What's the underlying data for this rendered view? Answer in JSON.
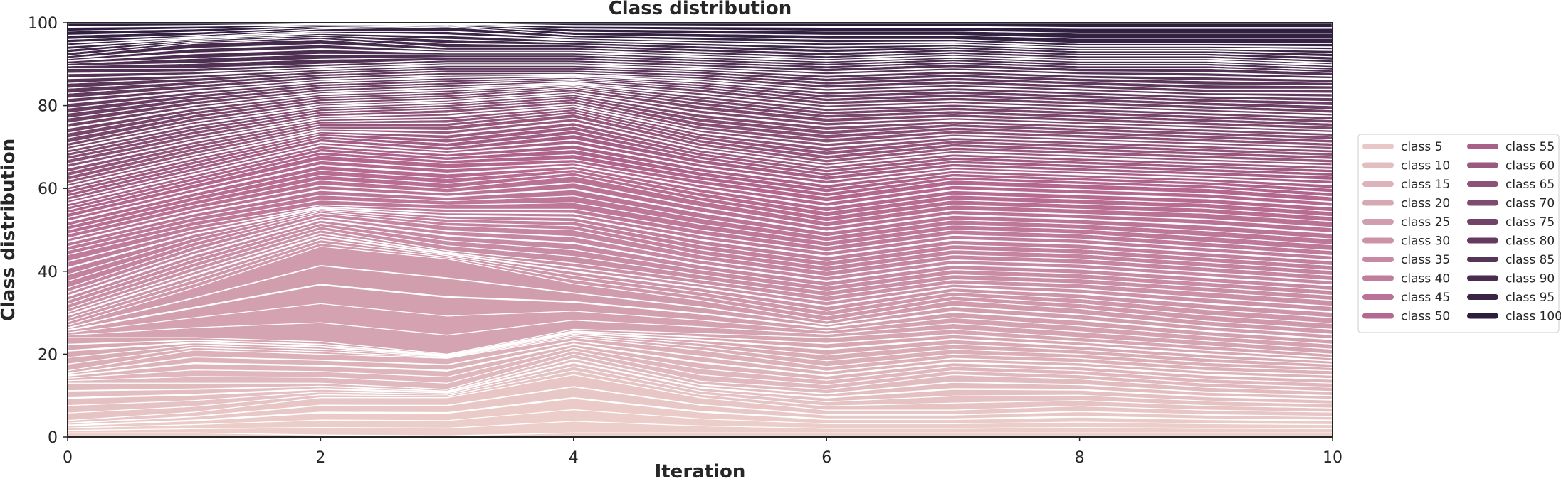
{
  "chart_data": {
    "type": "area",
    "stacked": true,
    "normalized_percent": true,
    "title": "Class distribution",
    "xlabel": "Iteration",
    "ylabel": "Class distribution",
    "xlim": [
      0,
      10
    ],
    "ylim": [
      0,
      100
    ],
    "x": [
      0,
      1,
      2,
      3,
      4,
      5,
      6,
      7,
      8,
      9,
      10
    ],
    "x_ticks": [
      0,
      2,
      4,
      6,
      8,
      10
    ],
    "y_ticks": [
      0,
      20,
      40,
      60,
      80,
      100
    ],
    "grid": false,
    "legend_placement": "right, outside plot",
    "legend_columns": 2,
    "num_classes": 100,
    "palette": {
      "lightest": "#edd1cb",
      "mid": "#b4678f",
      "darkest": "#2d1e3e",
      "separator": "#ffffff"
    },
    "legend": [
      "class 5",
      "class 10",
      "class 15",
      "class 20",
      "class 25",
      "class 30",
      "class 35",
      "class 40",
      "class 45",
      "class 50",
      "class 55",
      "class 60",
      "class 65",
      "class 70",
      "class 75",
      "class 80",
      "class 85",
      "class 90",
      "class 95",
      "class 100"
    ],
    "cumulative_anchors": [
      {
        "class_index": 0,
        "top": [
          1.0,
          1.0,
          0.5,
          0.3,
          1.0,
          1.0,
          1.0,
          1.0,
          1.0,
          1.0,
          1.0
        ]
      },
      {
        "class_index": 5,
        "top": [
          4.0,
          6.0,
          9.5,
          9.5,
          15.0,
          9.5,
          6.5,
          6.5,
          7.5,
          6.5,
          6.0
        ]
      },
      {
        "class_index": 10,
        "top": [
          13.0,
          13.0,
          13.0,
          11.5,
          20.0,
          13.5,
          11.5,
          15.0,
          14.0,
          12.0,
          11.0
        ]
      },
      {
        "class_index": 15,
        "top": [
          16.0,
          21.0,
          20.0,
          19.0,
          24.0,
          21.0,
          17.0,
          20.0,
          19.0,
          17.0,
          16.0
        ]
      },
      {
        "class_index": 20,
        "top": [
          24.0,
          24.0,
          23.0,
          20.0,
          26.0,
          25.0,
          24.0,
          26.0,
          24.0,
          22.0,
          20.0
        ]
      },
      {
        "class_index": 25,
        "top": [
          27.0,
          36.0,
          46.0,
          43.0,
          37.0,
          33.0,
          28.0,
          33.0,
          31.0,
          28.0,
          26.0
        ]
      },
      {
        "class_index": 30,
        "top": [
          31.0,
          41.0,
          50.0,
          45.0,
          42.0,
          38.0,
          34.0,
          38.0,
          37.0,
          35.0,
          33.0
        ]
      },
      {
        "class_index": 35,
        "top": [
          36.0,
          46.0,
          54.0,
          51.0,
          50.0,
          44.0,
          40.0,
          44.0,
          43.0,
          41.0,
          39.0
        ]
      },
      {
        "class_index": 40,
        "top": [
          44.0,
          51.0,
          56.0,
          55.0,
          55.0,
          50.0,
          46.0,
          50.0,
          49.0,
          47.0,
          45.0
        ]
      },
      {
        "class_index": 45,
        "top": [
          49.0,
          56.0,
          62.0,
          60.0,
          63.0,
          57.0,
          52.0,
          56.0,
          55.0,
          54.0,
          52.0
        ]
      },
      {
        "class_index": 50,
        "top": [
          54.0,
          61.0,
          68.0,
          66.0,
          67.0,
          62.0,
          58.0,
          62.0,
          61.0,
          60.0,
          58.0
        ]
      },
      {
        "class_index": 55,
        "top": [
          58.0,
          65.0,
          72.0,
          70.0,
          73.0,
          67.0,
          63.0,
          66.0,
          65.0,
          64.0,
          63.0
        ]
      },
      {
        "class_index": 60,
        "top": [
          62.0,
          69.0,
          75.0,
          75.0,
          78.0,
          71.0,
          67.0,
          70.0,
          69.0,
          68.0,
          67.0
        ]
      },
      {
        "class_index": 65,
        "top": [
          67.0,
          73.0,
          78.0,
          79.0,
          81.0,
          75.0,
          72.0,
          74.0,
          73.0,
          72.0,
          71.0
        ]
      },
      {
        "class_index": 70,
        "top": [
          71.0,
          77.0,
          81.0,
          82.0,
          84.0,
          80.0,
          77.0,
          78.0,
          77.0,
          76.0,
          75.0
        ]
      },
      {
        "class_index": 75,
        "top": [
          77.0,
          81.0,
          84.0,
          85.0,
          86.0,
          84.0,
          81.0,
          82.0,
          81.0,
          80.0,
          79.0
        ]
      },
      {
        "class_index": 80,
        "top": [
          83.0,
          85.0,
          87.0,
          88.0,
          88.0,
          87.0,
          85.0,
          86.0,
          85.0,
          84.0,
          84.0
        ]
      },
      {
        "class_index": 85,
        "top": [
          89.0,
          89.0,
          90.0,
          91.0,
          91.0,
          90.0,
          89.0,
          90.0,
          89.0,
          89.0,
          88.0
        ]
      },
      {
        "class_index": 90,
        "top": [
          92.0,
          95.0,
          96.0,
          94.0,
          94.0,
          93.0,
          92.0,
          93.0,
          92.0,
          92.0,
          91.0
        ]
      },
      {
        "class_index": 95,
        "top": [
          96.0,
          97.0,
          98.5,
          99.0,
          97.0,
          96.5,
          96.0,
          96.0,
          95.0,
          95.0,
          95.0
        ]
      },
      {
        "class_index": 99,
        "top": [
          100,
          100,
          100,
          100,
          100,
          100,
          100,
          100,
          100,
          100,
          100
        ]
      }
    ]
  }
}
